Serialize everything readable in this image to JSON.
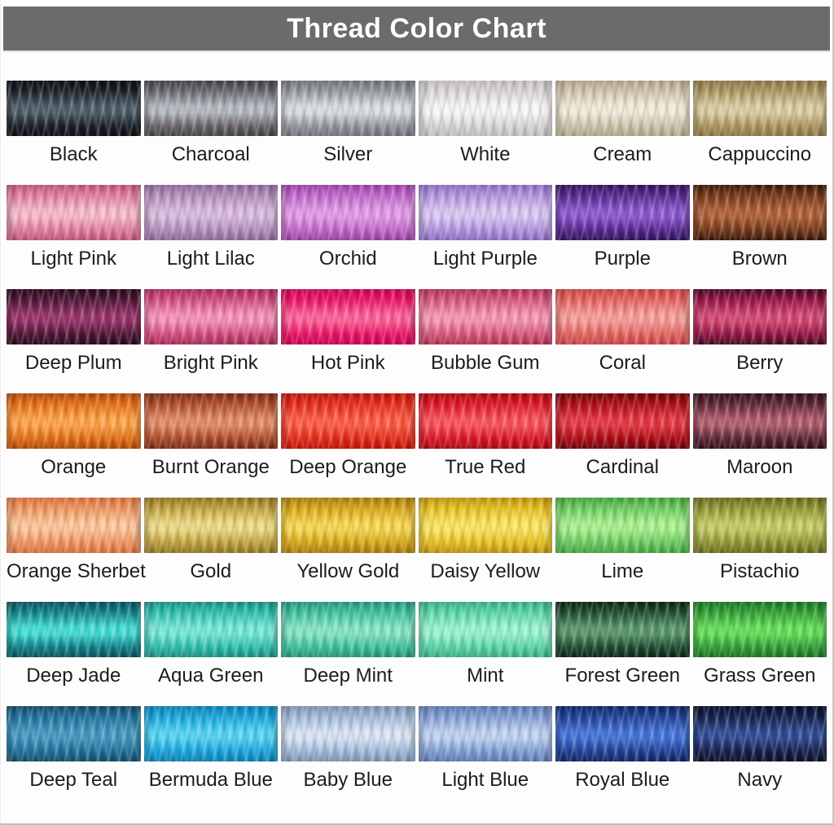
{
  "header": {
    "title": "Thread Color Chart",
    "bar_color": "#6b6b6b",
    "text_color": "#ffffff"
  },
  "grid": {
    "columns": 6,
    "rows": 7
  },
  "chart_data": {
    "type": "table",
    "title": "Thread Color Chart",
    "rows": [
      [
        "Black",
        "Charcoal",
        "Silver",
        "White",
        "Cream",
        "Cappuccino"
      ],
      [
        "Light Pink",
        "Light Lilac",
        "Orchid",
        "Light Purple",
        "Purple",
        "Brown"
      ],
      [
        "Deep Plum",
        "Bright Pink",
        "Hot Pink",
        "Bubble Gum",
        "Coral",
        "Berry"
      ],
      [
        "Orange",
        "Burnt Orange",
        "Deep Orange",
        "True Red",
        "Cardinal",
        "Maroon"
      ],
      [
        "Orange Sherbet",
        "Gold",
        "Yellow Gold",
        "Daisy Yellow",
        "Lime",
        "Pistachio"
      ],
      [
        "Deep Jade",
        "Aqua Green",
        "Deep Mint",
        "Mint",
        "Forest Green",
        "Grass Green"
      ],
      [
        "Deep Teal",
        "Bermuda Blue",
        "Baby Blue",
        "Light Blue",
        "Royal Blue",
        "Navy"
      ]
    ]
  },
  "threads": [
    {
      "name": "Black",
      "base": "#1a2026",
      "hi": "#4e5d68",
      "dark": "#0b0e12"
    },
    {
      "name": "Charcoal",
      "base": "#6a666c",
      "hi": "#b4b8c0",
      "dark": "#454247"
    },
    {
      "name": "Silver",
      "base": "#94979e",
      "hi": "#d8dde2",
      "dark": "#70737a"
    },
    {
      "name": "White",
      "base": "#d9d5d7",
      "hi": "#f8f6f7",
      "dark": "#c3bfc3"
    },
    {
      "name": "Cream",
      "base": "#cfc3ac",
      "hi": "#f1ebda",
      "dark": "#b3a78c"
    },
    {
      "name": "Cappuccino",
      "base": "#ac965f",
      "hi": "#dbcda1",
      "dark": "#8d7847"
    },
    {
      "name": "Light Pink",
      "base": "#e27c9d",
      "hi": "#f8b9ca",
      "dark": "#c05577"
    },
    {
      "name": "Light Lilac",
      "base": "#b28ebb",
      "hi": "#d9bbde",
      "dark": "#91689a"
    },
    {
      "name": "Orchid",
      "base": "#c167ca",
      "hi": "#e29ae9",
      "dark": "#9c42a7"
    },
    {
      "name": "Light Purple",
      "base": "#b193e0",
      "hi": "#dac6f3",
      "dark": "#8e6cc4"
    },
    {
      "name": "Purple",
      "base": "#55288f",
      "hi": "#8c58cf",
      "dark": "#31135c"
    },
    {
      "name": "Brown",
      "base": "#74381a",
      "hi": "#b06038",
      "dark": "#3a1708"
    },
    {
      "name": "Deep Plum",
      "base": "#4d1534",
      "hi": "#97336a",
      "dark": "#290a1c"
    },
    {
      "name": "Bright Pink",
      "base": "#d44b7e",
      "hi": "#f791b7",
      "dark": "#a72c5b"
    },
    {
      "name": "Hot Pink",
      "base": "#ee1066",
      "hi": "#ff5f97",
      "dark": "#c70850"
    },
    {
      "name": "Bubble Gum",
      "base": "#d85578",
      "hi": "#f795b1",
      "dark": "#b03256"
    },
    {
      "name": "Coral",
      "base": "#e6625f",
      "hi": "#f89c97",
      "dark": "#c94545"
    },
    {
      "name": "Berry",
      "base": "#951345",
      "hi": "#d44873",
      "dark": "#470a22"
    },
    {
      "name": "Orange",
      "base": "#e66d13",
      "hi": "#ffa348",
      "dark": "#b04a07"
    },
    {
      "name": "Burnt Orange",
      "base": "#b04b2b",
      "hi": "#e18c64",
      "dark": "#7c2c13"
    },
    {
      "name": "Deep Orange",
      "base": "#e62a1a",
      "hi": "#ff5b43",
      "dark": "#c01408"
    },
    {
      "name": "True Red",
      "base": "#de1523",
      "hi": "#fb515a",
      "dark": "#ab0a13"
    },
    {
      "name": "Cardinal",
      "base": "#ae0b15",
      "hi": "#e63642",
      "dark": "#700409"
    },
    {
      "name": "Maroon",
      "base": "#5b2634",
      "hi": "#b25c6c",
      "dark": "#371019"
    },
    {
      "name": "Orange Sherbet",
      "base": "#f0945f",
      "hi": "#ffc597",
      "dark": "#d9713d"
    },
    {
      "name": "Gold",
      "base": "#c1a13c",
      "hi": "#eeda82",
      "dark": "#927526"
    },
    {
      "name": "Yellow Gold",
      "base": "#d6a717",
      "hi": "#f8d64e",
      "dark": "#a87c0e"
    },
    {
      "name": "Daisy Yellow",
      "base": "#e7bf1e",
      "hi": "#fde45e",
      "dark": "#bd9310"
    },
    {
      "name": "Lime",
      "base": "#6bcb5e",
      "hi": "#a8f18e",
      "dark": "#44a43e"
    },
    {
      "name": "Pistachio",
      "base": "#919534",
      "hi": "#c5cb62",
      "dark": "#686d1c"
    },
    {
      "name": "Deep Jade",
      "base": "#10818a",
      "hi": "#43ded4",
      "dark": "#09545b"
    },
    {
      "name": "Aqua Green",
      "base": "#2dbfae",
      "hi": "#75e8d8",
      "dark": "#1b9183"
    },
    {
      "name": "Deep Mint",
      "base": "#3cc29a",
      "hi": "#85e5c7",
      "dark": "#27967a"
    },
    {
      "name": "Mint",
      "base": "#57d6a7",
      "hi": "#99f4d1",
      "dark": "#3aaf87"
    },
    {
      "name": "Forest Green",
      "base": "#1d4c2e",
      "hi": "#5a976c",
      "dark": "#0b2414"
    },
    {
      "name": "Grass Green",
      "base": "#30a035",
      "hi": "#64df57",
      "dark": "#1c7421"
    },
    {
      "name": "Deep Teal",
      "base": "#20709b",
      "hi": "#4499c2",
      "dark": "#154b69"
    },
    {
      "name": "Bermuda Blue",
      "base": "#18a5de",
      "hi": "#53d4f3",
      "dark": "#0d81b6"
    },
    {
      "name": "Baby Blue",
      "base": "#a1b9da",
      "hi": "#d7e4f6",
      "dark": "#8094ae"
    },
    {
      "name": "Light Blue",
      "base": "#809dd5",
      "hi": "#bed2f3",
      "dark": "#607bb1"
    },
    {
      "name": "Royal Blue",
      "base": "#1e4098",
      "hi": "#4472d6",
      "dark": "#102562"
    },
    {
      "name": "Navy",
      "base": "#14204c",
      "hi": "#304b96",
      "dark": "#0a0f29"
    }
  ]
}
